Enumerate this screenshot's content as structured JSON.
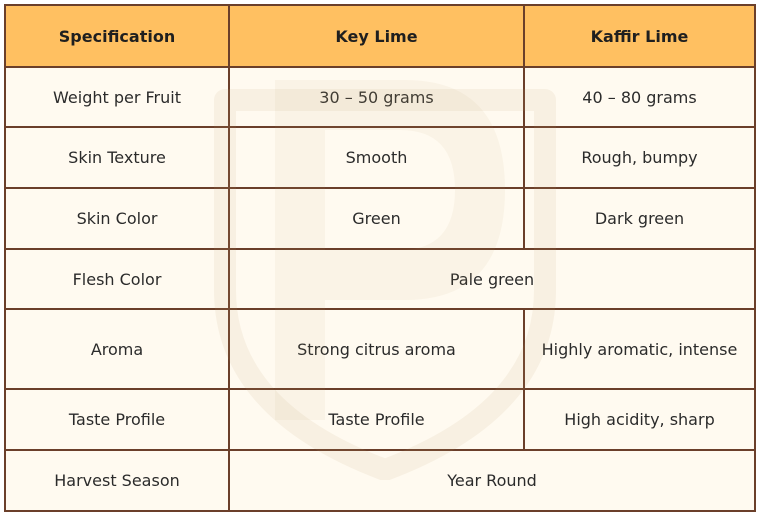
{
  "table": {
    "headers": [
      "Specification",
      "Key Lime",
      "Kaffir Lime"
    ],
    "rows": {
      "weight": {
        "label": "Weight per Fruit",
        "key_lime": "30 – 50 grams",
        "kaffir_lime": "40 – 80 grams"
      },
      "skin_texture": {
        "label": "Skin Texture",
        "key_lime": "Smooth",
        "kaffir_lime": "Rough, bumpy"
      },
      "skin_color": {
        "label": "Skin Color",
        "key_lime": "Green",
        "kaffir_lime": "Dark green"
      },
      "flesh_color": {
        "label": "Flesh Color",
        "both": "Pale green"
      },
      "aroma": {
        "label": "Aroma",
        "key_lime": "Strong citrus aroma",
        "kaffir_lime": "Highly aromatic, intense"
      },
      "taste_profile": {
        "label": "Taste Profile",
        "key_lime": "Taste Profile",
        "kaffir_lime": "High acidity, sharp"
      },
      "harvest_season": {
        "label": "Harvest Season",
        "both": "Year Round"
      }
    }
  },
  "colors": {
    "header_bg": "#ffc061",
    "cell_bg": "#fffaf0",
    "border": "#6b3f2a",
    "text": "#2b2b2b"
  }
}
